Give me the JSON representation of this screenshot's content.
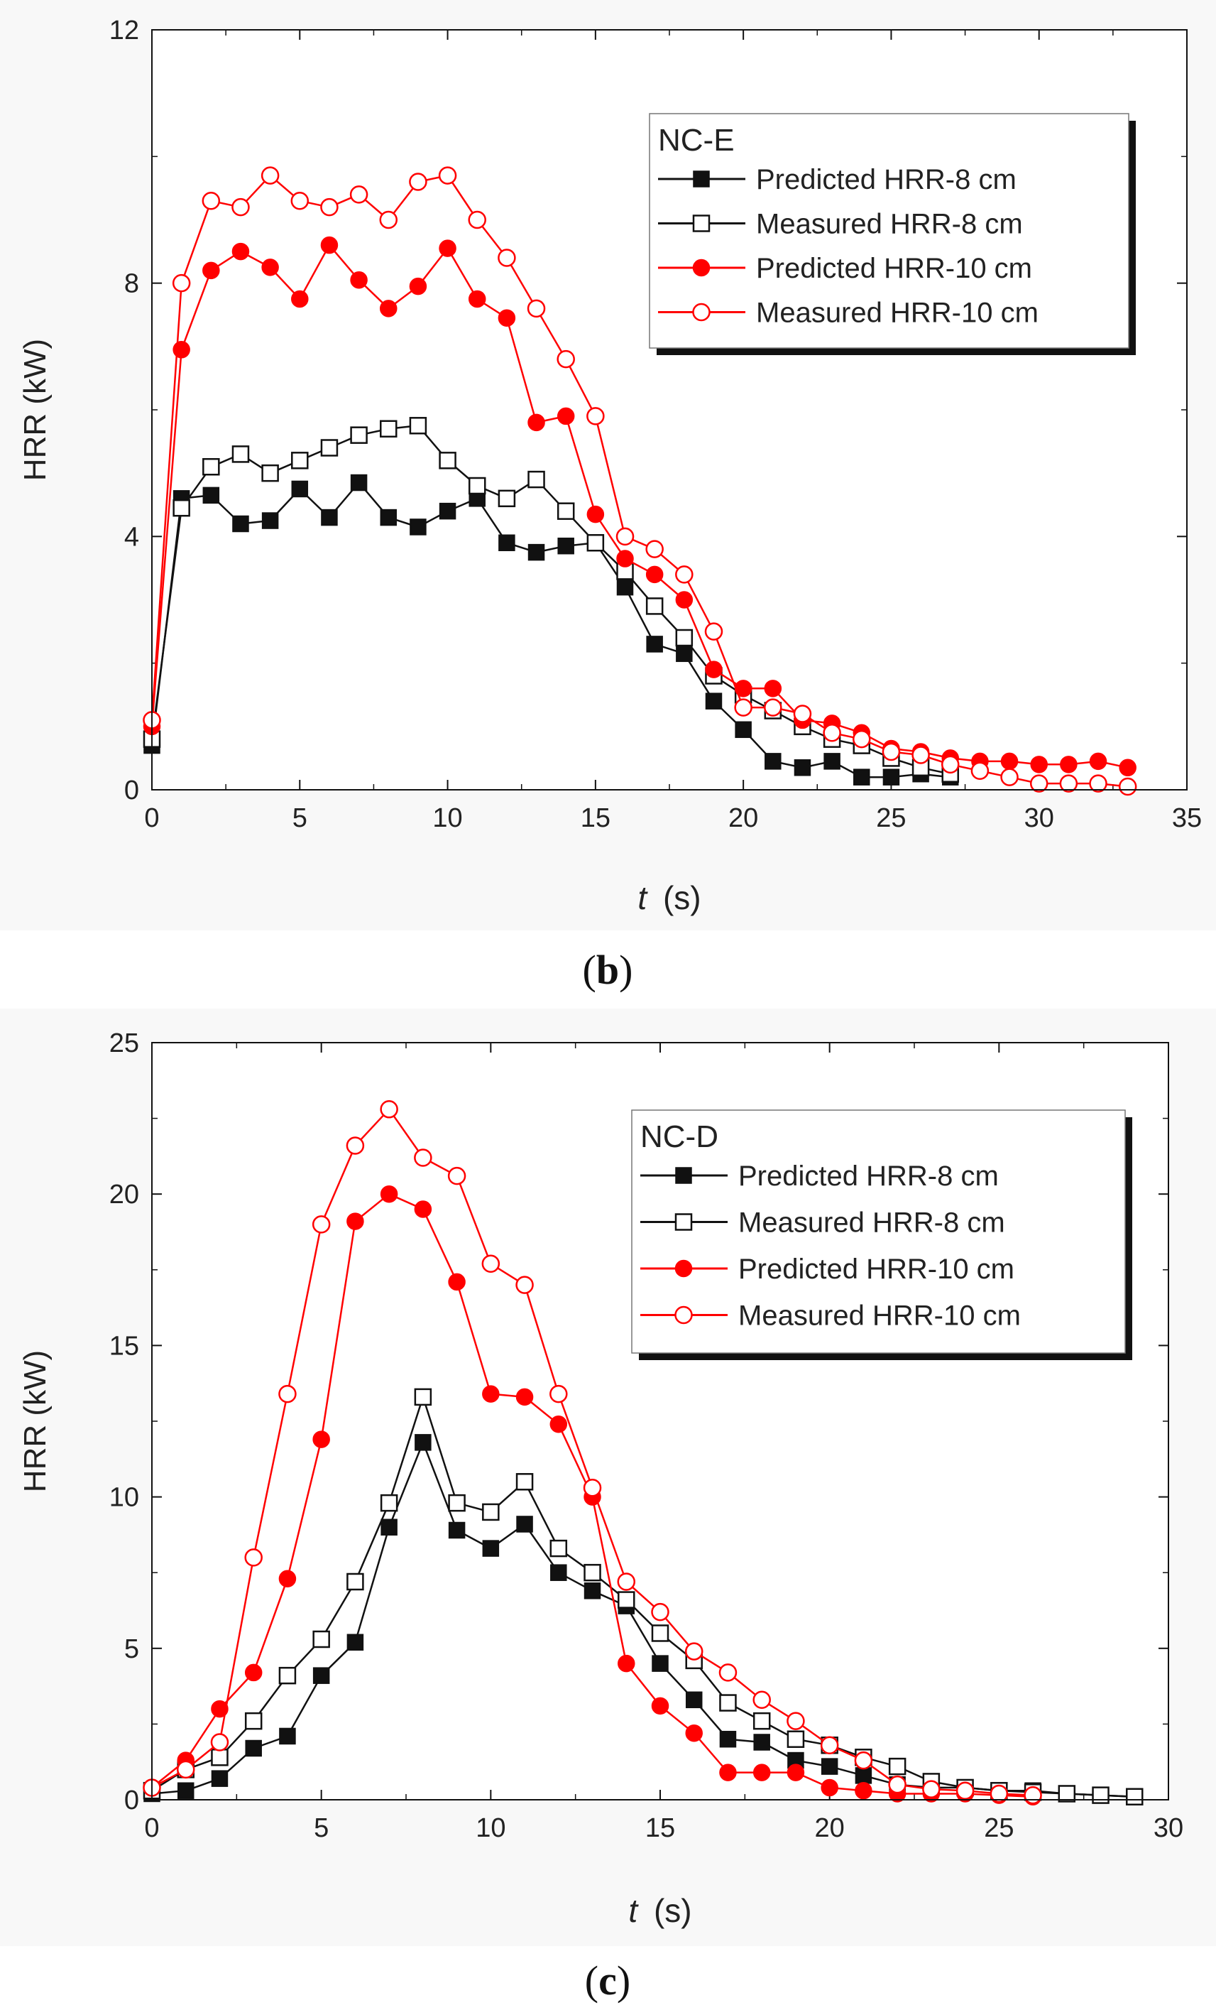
{
  "colors": {
    "black": "#111111",
    "red": "#ff0000",
    "figure_bg": "#f8f8f8",
    "plot_bg": "#ffffff"
  },
  "chart_data": [
    {
      "type": "line",
      "panel_label": "b",
      "legend_title": "NC-E",
      "xlabel": "t",
      "xlabel_unit": "(s)",
      "ylabel": "HRR (kW)",
      "xlim": [
        0,
        35
      ],
      "ylim": [
        0,
        12
      ],
      "xticks": [
        0,
        5,
        10,
        15,
        20,
        25,
        30,
        35
      ],
      "yticks": [
        0,
        4,
        8,
        12
      ],
      "legend_position": "top-right",
      "series": [
        {
          "name": "Predicted HRR-8 cm",
          "color": "#111111",
          "marker": "square-filled",
          "x": [
            0,
            1,
            2,
            3,
            4,
            5,
            6,
            7,
            8,
            9,
            10,
            11,
            12,
            13,
            14,
            15,
            16,
            17,
            18,
            19,
            20,
            21,
            22,
            23,
            24,
            25,
            26,
            27
          ],
          "y": [
            0.7,
            4.6,
            4.65,
            4.2,
            4.25,
            4.75,
            4.3,
            4.85,
            4.3,
            4.15,
            4.4,
            4.6,
            3.9,
            3.75,
            3.85,
            3.9,
            3.2,
            2.3,
            2.15,
            1.4,
            0.95,
            0.45,
            0.35,
            0.45,
            0.2,
            0.2,
            0.25,
            0.2
          ]
        },
        {
          "name": "Measured HRR-8 cm",
          "color": "#111111",
          "marker": "square-open",
          "x": [
            0,
            1,
            2,
            3,
            4,
            5,
            6,
            7,
            8,
            9,
            10,
            11,
            12,
            13,
            14,
            15,
            16,
            17,
            18,
            19,
            20,
            21,
            22,
            23,
            24,
            25,
            26,
            27
          ],
          "y": [
            0.8,
            4.45,
            5.1,
            5.3,
            5.0,
            5.2,
            5.4,
            5.6,
            5.7,
            5.75,
            5.2,
            4.8,
            4.6,
            4.9,
            4.4,
            3.9,
            3.45,
            2.9,
            2.4,
            1.8,
            1.5,
            1.25,
            1.0,
            0.8,
            0.7,
            0.5,
            0.35,
            0.25
          ]
        },
        {
          "name": "Predicted HRR-10 cm",
          "color": "#ff0000",
          "marker": "circle-filled",
          "x": [
            0,
            1,
            2,
            3,
            4,
            5,
            6,
            7,
            8,
            9,
            10,
            11,
            12,
            13,
            14,
            15,
            16,
            17,
            18,
            19,
            20,
            21,
            22,
            23,
            24,
            25,
            26,
            27,
            28,
            29,
            30,
            31,
            32,
            33
          ],
          "y": [
            1.0,
            6.95,
            8.2,
            8.5,
            8.25,
            7.75,
            8.6,
            8.05,
            7.6,
            7.95,
            8.55,
            7.75,
            7.45,
            5.8,
            5.9,
            4.35,
            3.65,
            3.4,
            3.0,
            1.9,
            1.6,
            1.6,
            1.1,
            1.05,
            0.9,
            0.65,
            0.6,
            0.5,
            0.45,
            0.45,
            0.4,
            0.4,
            0.45,
            0.35
          ]
        },
        {
          "name": "Measured HRR-10 cm",
          "color": "#ff0000",
          "marker": "circle-open",
          "x": [
            0,
            1,
            2,
            3,
            4,
            5,
            6,
            7,
            8,
            9,
            10,
            11,
            12,
            13,
            14,
            15,
            16,
            17,
            18,
            19,
            20,
            21,
            22,
            23,
            24,
            25,
            26,
            27,
            28,
            29,
            30,
            31,
            32,
            33
          ],
          "y": [
            1.1,
            8.0,
            9.3,
            9.2,
            9.7,
            9.3,
            9.2,
            9.4,
            9.0,
            9.6,
            9.7,
            9.0,
            8.4,
            7.6,
            6.8,
            5.9,
            4.0,
            3.8,
            3.4,
            2.5,
            1.3,
            1.3,
            1.2,
            0.9,
            0.8,
            0.6,
            0.55,
            0.4,
            0.3,
            0.2,
            0.1,
            0.1,
            0.1,
            0.05
          ]
        }
      ]
    },
    {
      "type": "line",
      "panel_label": "c",
      "legend_title": "NC-D",
      "xlabel": "t",
      "xlabel_unit": "(s)",
      "ylabel": "HRR (kW)",
      "xlim": [
        0,
        30
      ],
      "ylim": [
        0,
        25
      ],
      "xticks": [
        0,
        5,
        10,
        15,
        20,
        25,
        30
      ],
      "yticks": [
        0,
        5,
        10,
        15,
        20,
        25
      ],
      "legend_position": "top-right",
      "series": [
        {
          "name": "Predicted HRR-8 cm",
          "color": "#111111",
          "marker": "square-filled",
          "x": [
            0,
            1,
            2,
            3,
            4,
            5,
            6,
            7,
            8,
            9,
            10,
            11,
            12,
            13,
            14,
            15,
            16,
            17,
            18,
            19,
            20,
            21,
            22,
            23,
            24,
            25,
            26,
            27,
            28,
            29
          ],
          "y": [
            0.2,
            0.3,
            0.7,
            1.7,
            2.1,
            4.1,
            5.2,
            9.0,
            11.8,
            8.9,
            8.3,
            9.1,
            7.5,
            6.9,
            6.4,
            4.5,
            3.3,
            2.0,
            1.9,
            1.3,
            1.1,
            0.8,
            0.5,
            0.4,
            0.4,
            0.3,
            0.3,
            0.2,
            0.15,
            0.1
          ]
        },
        {
          "name": "Measured HRR-8 cm",
          "color": "#111111",
          "marker": "square-open",
          "x": [
            0,
            1,
            2,
            3,
            4,
            5,
            6,
            7,
            8,
            9,
            10,
            11,
            12,
            13,
            14,
            15,
            16,
            17,
            18,
            19,
            20,
            21,
            22,
            23,
            24,
            25,
            26,
            27,
            28,
            29
          ],
          "y": [
            0.3,
            1.0,
            1.4,
            2.6,
            4.1,
            5.3,
            7.2,
            9.8,
            13.3,
            9.8,
            9.5,
            10.5,
            8.3,
            7.5,
            6.6,
            5.5,
            4.6,
            3.2,
            2.6,
            2.0,
            1.8,
            1.4,
            1.1,
            0.6,
            0.4,
            0.3,
            0.25,
            0.2,
            0.15,
            0.1
          ]
        },
        {
          "name": "Predicted HRR-10 cm",
          "color": "#ff0000",
          "marker": "circle-filled",
          "x": [
            0,
            1,
            2,
            3,
            4,
            5,
            6,
            7,
            8,
            9,
            10,
            11,
            12,
            13,
            14,
            15,
            16,
            17,
            18,
            19,
            20,
            21,
            22,
            23,
            24,
            25,
            26
          ],
          "y": [
            0.4,
            1.3,
            3.0,
            4.2,
            7.3,
            11.9,
            19.1,
            20.0,
            19.5,
            17.1,
            13.4,
            13.3,
            12.4,
            10.0,
            4.5,
            3.1,
            2.2,
            0.9,
            0.9,
            0.9,
            0.4,
            0.3,
            0.2,
            0.2,
            0.2,
            0.15,
            0.1
          ]
        },
        {
          "name": "Measured HRR-10 cm",
          "color": "#ff0000",
          "marker": "circle-open",
          "x": [
            0,
            1,
            2,
            3,
            4,
            5,
            6,
            7,
            8,
            9,
            10,
            11,
            12,
            13,
            14,
            15,
            16,
            17,
            18,
            19,
            20,
            21,
            22,
            23,
            24,
            25,
            26
          ],
          "y": [
            0.4,
            1.0,
            1.9,
            8.0,
            13.4,
            19.0,
            21.6,
            22.8,
            21.2,
            20.6,
            17.7,
            17.0,
            13.4,
            10.3,
            7.2,
            6.2,
            4.9,
            4.2,
            3.3,
            2.6,
            1.8,
            1.3,
            0.5,
            0.35,
            0.3,
            0.2,
            0.15
          ]
        }
      ]
    }
  ]
}
